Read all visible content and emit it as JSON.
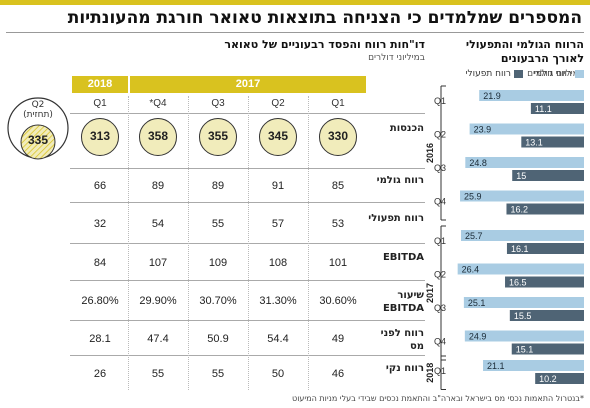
{
  "headline": "המספרים שמלמדים כי הצניחה בתוצאות טאואר חורגת מהעונתיות",
  "bar_panel": {
    "title": "הרווח הגולמי והתפעולי לאורך הרבעונים",
    "subtitle": "במיליוני דולרים",
    "legend": [
      "רווח גולמי",
      "רווח תפעולי"
    ],
    "colors": {
      "gross": "#a9cce3",
      "operating": "#4f6475"
    }
  },
  "table_panel": {
    "title": "דו\"חות רווח והפסד רבעוניים של טאואר",
    "subtitle": "במיליוני דולרים",
    "year_labels": [
      "2018",
      "2017"
    ],
    "columns": [
      "Q1",
      "*Q4",
      "Q3",
      "Q2",
      "Q1"
    ],
    "forecast_quarter": "Q2",
    "forecast_note": "(תחזית)",
    "forecast_revenue": "335",
    "rows": [
      {
        "label": "הכנסות",
        "values": [
          "313",
          "358",
          "355",
          "345",
          "330"
        ]
      },
      {
        "label": "רווח גולמי",
        "values": [
          "66",
          "89",
          "89",
          "91",
          "85"
        ]
      },
      {
        "label": "רווח תפעולי",
        "values": [
          "32",
          "54",
          "55",
          "57",
          "53"
        ]
      },
      {
        "label": "EBITDA",
        "values": [
          "84",
          "107",
          "109",
          "108",
          "101"
        ]
      },
      {
        "label": "שיעור EBITDA",
        "values": [
          "26.80%",
          "29.90%",
          "30.70%",
          "31.30%",
          "30.60%"
        ]
      },
      {
        "label": "רווח לפני מס",
        "values": [
          "28.1",
          "47.4",
          "50.9",
          "54.4",
          "49"
        ]
      },
      {
        "label": "רווח נקי",
        "values": [
          "26",
          "55",
          "55",
          "50",
          "46"
        ]
      }
    ]
  },
  "footnote": "*בנטרול התאמות נכסי מס בישראל ובארה\"ב והתאמת נכסים שבידי בעלי מניות המיעוט",
  "chart_data": {
    "type": "bar",
    "orientation": "horizontal",
    "title": "הרווח הגולמי והתפעולי לאורך הרבעונים",
    "subtitle": "במיליוני דולרים",
    "groups": [
      {
        "year": "2016",
        "quarters": [
          "Q1",
          "Q2",
          "Q3",
          "Q4"
        ]
      },
      {
        "year": "2017",
        "quarters": [
          "Q1",
          "Q2",
          "Q3",
          "Q4"
        ]
      },
      {
        "year": "2018",
        "quarters": [
          "Q1"
        ]
      }
    ],
    "categories": [
      "2016 Q1",
      "2016 Q2",
      "2016 Q3",
      "2016 Q4",
      "2017 Q1",
      "2017 Q2",
      "2017 Q3",
      "2017 Q4",
      "2018 Q1"
    ],
    "series": [
      {
        "name": "רווח גולמי",
        "values": [
          21.9,
          23.9,
          24.8,
          25.9,
          25.7,
          26.4,
          25.1,
          24.9,
          21.1
        ]
      },
      {
        "name": "רווח תפעולי",
        "values": [
          11.1,
          13.1,
          15,
          16.2,
          16.1,
          16.5,
          15.5,
          15.1,
          10.2
        ]
      }
    ],
    "value_labels": [
      [
        "21.9",
        "23.9",
        "24.8",
        "25.9",
        "25.7",
        "26.4",
        "25.1",
        "24.9",
        "21.1"
      ],
      [
        "11.1",
        "13.1",
        "15",
        "16.2",
        "16.1",
        "16.5",
        "15.5",
        "15.1",
        "10.2"
      ]
    ],
    "xlim": [
      0,
      28
    ],
    "legend_position": "top-right",
    "grid": false
  }
}
